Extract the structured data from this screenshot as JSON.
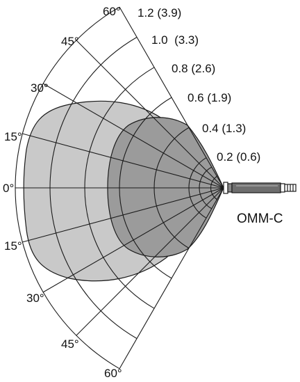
{
  "diagram": {
    "angle_labels": {
      "upper": [
        "60°",
        "45°",
        "30°",
        "15°"
      ],
      "zero": "0°",
      "lower": [
        "15°",
        "30°",
        "45°",
        "60°"
      ]
    },
    "range_labels": [
      "1.2 (3.9)",
      "1.0  (3.3)",
      "0.8 (2.6)",
      "0.6 (1.9)",
      "0.4 (1.3)",
      "0.2 (0.6)"
    ],
    "sensor_label": "OMM-C",
    "colors": {
      "outer_lobe": "#c9c9c9",
      "inner_lobe": "#9b9b9b",
      "lines": "#1a1a1a",
      "background": "#ffffff"
    }
  }
}
